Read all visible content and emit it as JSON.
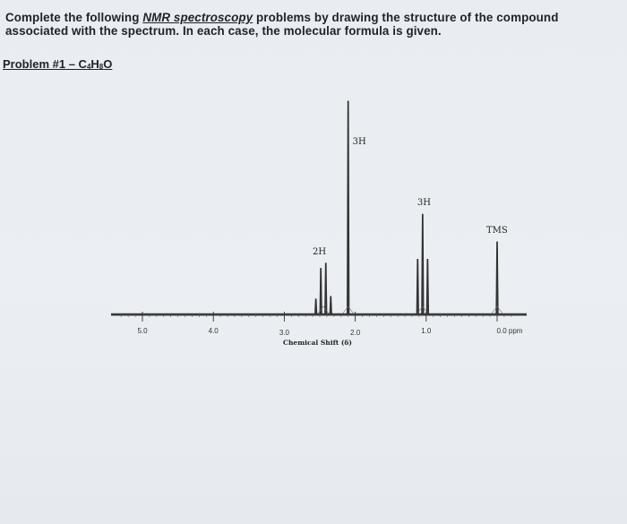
{
  "instructions": {
    "before": "Complete the following ",
    "emphasis": "NMR spectroscopy",
    "after": " problems by drawing the structure of the compound associated with the spectrum.  In each case, the molecular formula is given."
  },
  "problem": {
    "prefix": "Problem #1 – C",
    "c_sub": "4",
    "h": "H",
    "h_sub": "8",
    "o": "O"
  },
  "chart_data": {
    "type": "line",
    "title": "",
    "xlabel": "Chemical Shift  (δ)",
    "ylabel": "",
    "x_reversed": true,
    "xlim": [
      5.3,
      -0.2
    ],
    "ticks": [
      {
        "value": 5.0,
        "label": "5.0"
      },
      {
        "value": 4.0,
        "label": "4.0"
      },
      {
        "value": 3.0,
        "label": "3.0"
      },
      {
        "value": 2.0,
        "label": "2.0"
      },
      {
        "value": 1.0,
        "label": "1.0"
      },
      {
        "value": 0.0,
        "label": "0.0  ppm"
      }
    ],
    "peaks": [
      {
        "label": "2H",
        "shift": 2.45,
        "multiplicity": "quartet",
        "intensity": 0.24
      },
      {
        "label": "3H",
        "shift": 2.1,
        "multiplicity": "singlet",
        "intensity": 1.0
      },
      {
        "label": "3H",
        "shift": 1.05,
        "multiplicity": "triplet",
        "intensity": 0.47
      },
      {
        "label": "TMS",
        "shift": 0.0,
        "multiplicity": "singlet",
        "intensity": 0.34
      }
    ]
  }
}
